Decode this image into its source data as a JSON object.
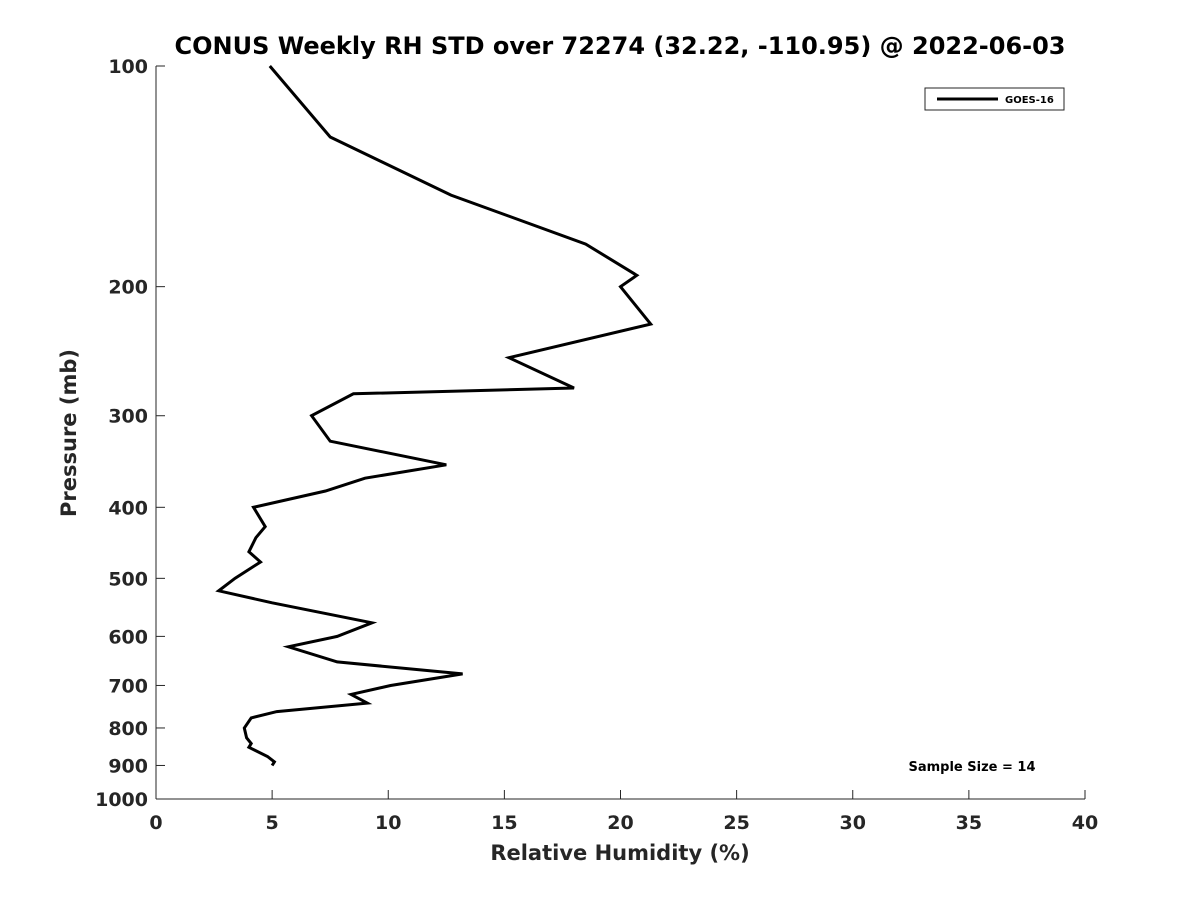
{
  "chart_data": {
    "type": "line",
    "title": "CONUS Weekly RH STD over 72274 (32.22, -110.95) @ 2022-06-03",
    "xlabel": "Relative Humidity (%)",
    "ylabel": "Pressure (mb)",
    "xlim": [
      0,
      40
    ],
    "ylim": [
      100,
      1000
    ],
    "yscale": "log",
    "y_reversed": true,
    "grid": false,
    "legend_position": "top-right",
    "x_ticks": [
      0,
      5,
      10,
      15,
      20,
      25,
      30,
      35,
      40
    ],
    "y_ticks": [
      100,
      200,
      300,
      400,
      500,
      600,
      700,
      800,
      900,
      1000
    ],
    "annotation": "Sample Size = 14",
    "series": [
      {
        "name": "GOES-16",
        "color": "#000000",
        "points": [
          [
            4.9,
            100
          ],
          [
            7.5,
            125
          ],
          [
            12.7,
            150
          ],
          [
            18.5,
            175
          ],
          [
            20.7,
            193
          ],
          [
            20.0,
            200
          ],
          [
            21.3,
            225
          ],
          [
            15.2,
            250
          ],
          [
            18.0,
            275
          ],
          [
            8.5,
            280
          ],
          [
            6.7,
            300
          ],
          [
            7.5,
            325
          ],
          [
            12.5,
            350
          ],
          [
            9.0,
            365
          ],
          [
            7.3,
            380
          ],
          [
            4.2,
            400
          ],
          [
            4.7,
            425
          ],
          [
            4.3,
            440
          ],
          [
            4.0,
            460
          ],
          [
            4.5,
            475
          ],
          [
            3.4,
            500
          ],
          [
            2.7,
            520
          ],
          [
            5.0,
            540
          ],
          [
            9.3,
            575
          ],
          [
            7.8,
            600
          ],
          [
            5.7,
            620
          ],
          [
            7.8,
            650
          ],
          [
            13.2,
            675
          ],
          [
            10.1,
            700
          ],
          [
            8.4,
            720
          ],
          [
            9.1,
            740
          ],
          [
            5.2,
            760
          ],
          [
            4.1,
            775
          ],
          [
            3.8,
            800
          ],
          [
            3.9,
            825
          ],
          [
            4.1,
            840
          ],
          [
            4.0,
            850
          ],
          [
            4.8,
            875
          ],
          [
            5.1,
            890
          ],
          [
            5.0,
            900
          ]
        ]
      }
    ]
  }
}
